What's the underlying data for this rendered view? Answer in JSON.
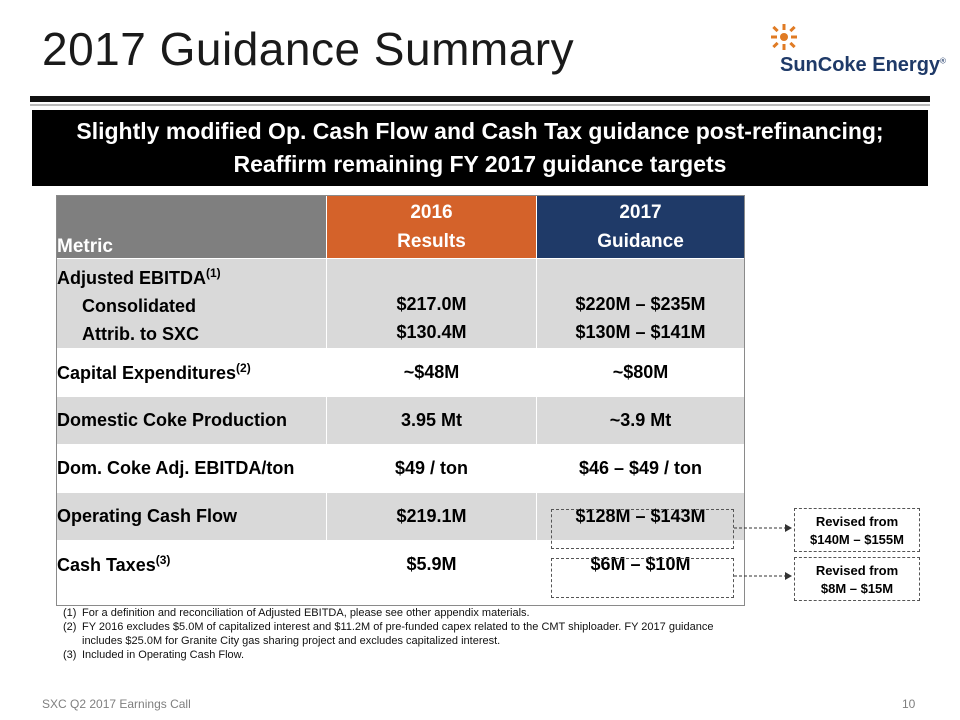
{
  "slide": {
    "title": "2017 Guidance Summary",
    "logo_text": "SunCoke Energy",
    "logo_mark": "®",
    "banner_line1": "Slightly modified Op. Cash Flow and Cash Tax guidance post-refinancing;",
    "banner_line2": "Reaffirm remaining FY 2017 guidance targets",
    "footer_text": "SXC Q2 2017 Earnings Call",
    "page_number": "10"
  },
  "table": {
    "header": {
      "metric": "Metric",
      "col2_line1": "2016",
      "col2_line2": "Results",
      "col3_line1": "2017",
      "col3_line2": "Guidance"
    },
    "ebitda": {
      "label": "Adjusted EBITDA",
      "note": "(1)",
      "consolidated_label": "Consolidated",
      "consolidated_2016": "$217.0M",
      "consolidated_2017": "$220M – $235M",
      "attrib_label": "Attrib. to SXC",
      "attrib_2016": "$130.4M",
      "attrib_2017": "$130M – $141M"
    },
    "capex": {
      "label": "Capital Expenditures",
      "note": "(2)",
      "v2016": "~$48M",
      "v2017": "~$80M"
    },
    "production": {
      "label": "Domestic Coke Production",
      "v2016": "3.95 Mt",
      "v2017": "~3.9 Mt"
    },
    "ebitda_ton": {
      "label": "Dom. Coke Adj. EBITDA/ton",
      "v2016": "$49 / ton",
      "v2017": "$46 – $49 / ton"
    },
    "ocf": {
      "label": "Operating Cash Flow",
      "v2016": "$219.1M",
      "v2017": "$128M – $143M"
    },
    "taxes": {
      "label": "Cash Taxes",
      "note": "(3)",
      "v2016": "$5.9M",
      "v2017": "$6M – $10M"
    }
  },
  "callouts": {
    "ocf_line1": "Revised from",
    "ocf_line2": "$140M – $155M",
    "tax_line1": "Revised from",
    "tax_line2": "$8M – $15M"
  },
  "footnotes": [
    {
      "num": "(1)",
      "text": "For a definition and reconciliation of Adjusted EBITDA, please see other appendix materials."
    },
    {
      "num": "(2)",
      "text": "FY 2016 excludes $5.0M of capitalized interest and $11.2M of pre-funded capex related to the CMT shiploader. FY 2017 guidance includes $25.0M for Granite City gas sharing project and excludes capitalized interest."
    },
    {
      "num": "(3)",
      "text": "Included in Operating Cash Flow."
    }
  ],
  "colors": {
    "header_gray": "#7f7f7f",
    "header_orange": "#d4622a",
    "header_navy": "#1f3a68",
    "row_gray": "#d9d9d9",
    "logo_orange": "#e07b24"
  },
  "icons": {
    "logo": "suncoke-sun-icon"
  }
}
